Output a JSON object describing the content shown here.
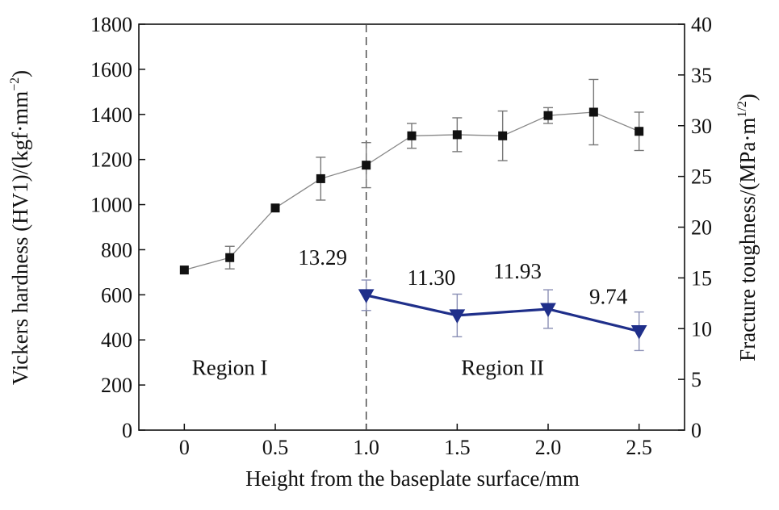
{
  "chart_data": {
    "type": "line",
    "xlabel": "Height from the baseplate surface/mm",
    "ylabel_left_parts": {
      "main": "Vickers hardness (HV1)/(kgf·mm",
      "sup": "−2",
      "end": ")"
    },
    "ylabel_right_parts": {
      "main": "Fracture toughness/(MPa·m",
      "sup": "1/2",
      "end": ")"
    },
    "x_ticks": [
      0,
      0.5,
      1.0,
      1.5,
      2.0,
      2.5
    ],
    "x_tick_labels": [
      "0",
      "0.5",
      "1.0",
      "1.5",
      "2.0",
      "2.5"
    ],
    "xlim": [
      -0.25,
      2.75
    ],
    "y_left_ticks": [
      "0",
      "200",
      "400",
      "600",
      "800",
      "1000",
      "1200",
      "1400",
      "1600",
      "1800"
    ],
    "ylim_left": [
      0,
      1800
    ],
    "y_right_ticks": [
      "0",
      "5",
      "10",
      "15",
      "20",
      "25",
      "30",
      "35",
      "40"
    ],
    "ylim_right": [
      0,
      40
    ],
    "divider_x": 1.0,
    "regions": [
      {
        "label": "Region I",
        "x": 0.25,
        "y": 245
      },
      {
        "label": "Region II",
        "x": 1.75,
        "y": 245
      }
    ],
    "series": [
      {
        "axis": "left",
        "marker": "square",
        "color": "#111111",
        "line_color": "#888888",
        "x": [
          0,
          0.25,
          0.5,
          0.75,
          1.0,
          1.25,
          1.5,
          1.75,
          2.0,
          2.25,
          2.5
        ],
        "y": [
          710,
          765,
          985,
          1115,
          1175,
          1305,
          1310,
          1305,
          1395,
          1410,
          1325
        ],
        "err": [
          0,
          50,
          0,
          95,
          100,
          55,
          75,
          110,
          35,
          145,
          85
        ]
      },
      {
        "axis": "right",
        "marker": "triangle-down",
        "color": "#1f2f8a",
        "line_color": "#1f2f8a",
        "x": [
          1.0,
          1.5,
          2.0,
          2.5
        ],
        "y": [
          13.29,
          11.3,
          11.93,
          9.74
        ],
        "err": [
          1.5,
          2.1,
          1.9,
          1.9
        ],
        "labels": [
          "13.29",
          "11.30",
          "11.93",
          "9.74"
        ]
      }
    ]
  }
}
